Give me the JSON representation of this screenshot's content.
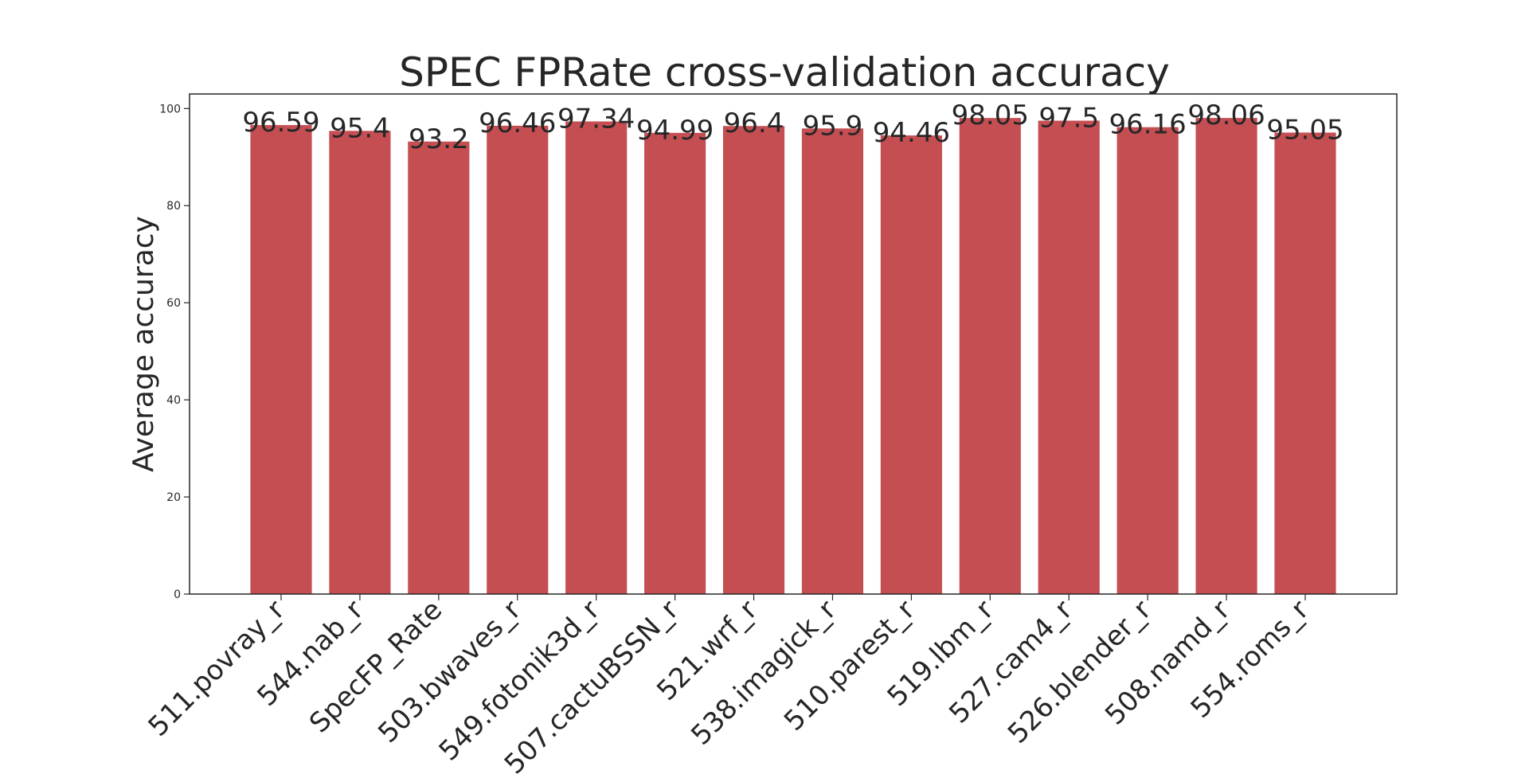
{
  "chart_data": {
    "type": "bar",
    "title": "SPEC FPRate cross-validation accuracy",
    "xlabel": "",
    "ylabel": "Average accuracy",
    "categories": [
      "511.povray_r",
      "544.nab_r",
      "SpecFP_Rate",
      "503.bwaves_r",
      "549.fotonik3d_r",
      "507.cactuBSSN_r",
      "521.wrf_r",
      "538.imagick_r",
      "510.parest_r",
      "519.lbm_r",
      "527.cam4_r",
      "526.blender_r",
      "508.namd_r",
      "554.roms_r"
    ],
    "values": [
      96.59,
      95.4,
      93.2,
      96.46,
      97.34,
      94.99,
      96.4,
      95.9,
      94.46,
      98.05,
      97.5,
      96.16,
      98.06,
      95.05
    ],
    "data_labels": [
      "96.59",
      "95.4",
      "93.2",
      "96.46",
      "97.34",
      "94.99",
      "96.4",
      "95.9",
      "94.46",
      "98.05",
      "97.5",
      "96.16",
      "98.06",
      "95.05"
    ],
    "yticks": [
      0,
      20,
      40,
      60,
      80,
      100
    ],
    "ylim": [
      0,
      103
    ],
    "grid": false,
    "legend": "none",
    "bar_color": "#c44e52",
    "axis_color": "#262626"
  }
}
